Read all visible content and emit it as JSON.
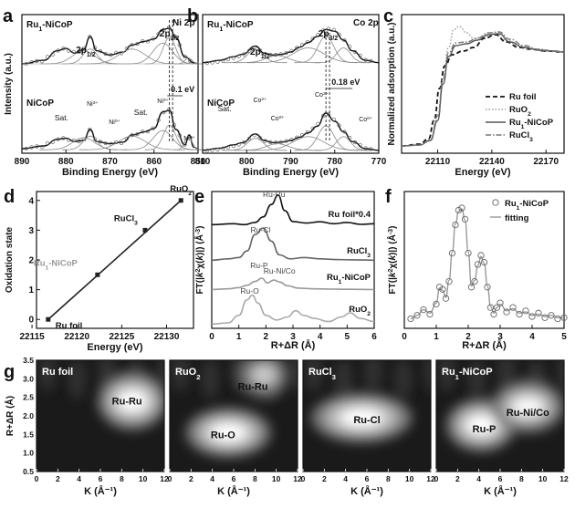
{
  "chart_data": [
    {
      "panel": "a",
      "type": "line",
      "xlabel": "Binding Energy (eV)",
      "ylabel": "Intensity (a.u.)",
      "xlim": [
        890,
        850
      ],
      "xticks": [
        "890",
        "880",
        "870",
        "860",
        "850"
      ],
      "tag": "Ni 2p",
      "series": [
        {
          "name": "Ru1-NiCoP",
          "name_parts": [
            "Ru",
            "1",
            "-NiCoP"
          ],
          "x": [
            890,
            885,
            882,
            880,
            878,
            876,
            874.5,
            873,
            870,
            867,
            865,
            862,
            860,
            858,
            856.5,
            855,
            853,
            851,
            850
          ],
          "y": [
            0.4,
            0.46,
            0.62,
            0.66,
            0.58,
            0.64,
            0.86,
            0.62,
            0.55,
            0.6,
            0.72,
            0.78,
            0.82,
            0.98,
            1.0,
            0.84,
            0.52,
            0.42,
            0.4
          ]
        },
        {
          "name": "NiCoP",
          "x": [
            890,
            885,
            882,
            880,
            878,
            876,
            874.5,
            873,
            870,
            867,
            865,
            862,
            860,
            858,
            856.5,
            855,
            853,
            852,
            851,
            850
          ],
          "y": [
            0.05,
            0.1,
            0.22,
            0.24,
            0.18,
            0.2,
            0.4,
            0.18,
            0.14,
            0.17,
            0.3,
            0.36,
            0.42,
            0.72,
            0.75,
            0.4,
            0.12,
            0.3,
            0.08,
            0.04
          ]
        }
      ],
      "labels": {
        "top_peak_1": [
          "2p",
          "1/2"
        ],
        "top_peak_2": [
          "2p",
          "3/2"
        ],
        "shift": "0.1 eV",
        "sat_1": "Sat.",
        "sat_2": "Sat.",
        "ni_labels": [
          [
            "Ni",
            "3+"
          ],
          [
            "Ni",
            "0+"
          ],
          [
            "Ni",
            "3+"
          ],
          [
            "Ni",
            "0+"
          ]
        ]
      }
    },
    {
      "panel": "b",
      "type": "line",
      "xlabel": "Binding Energy (eV)",
      "ylabel": "",
      "xlim": [
        810,
        770
      ],
      "xticks": [
        "810",
        "800",
        "790",
        "780",
        "770"
      ],
      "tag": "Co 2p",
      "series": [
        {
          "name": "Ru1-NiCoP",
          "name_parts": [
            "Ru",
            "1",
            "-NiCoP"
          ],
          "x": [
            810,
            806,
            803,
            801,
            798,
            796,
            794,
            792,
            790,
            788,
            786,
            784,
            782,
            780,
            778,
            776,
            773,
            770
          ],
          "y": [
            0.42,
            0.46,
            0.52,
            0.56,
            0.7,
            0.58,
            0.55,
            0.56,
            0.6,
            0.68,
            0.76,
            0.86,
            0.98,
            0.95,
            0.8,
            0.62,
            0.46,
            0.42
          ]
        },
        {
          "name": "NiCoP",
          "x": [
            810,
            806,
            803,
            801,
            798,
            796,
            794,
            792,
            790,
            788,
            786,
            784,
            782,
            780,
            778,
            776,
            773,
            770
          ],
          "y": [
            0.02,
            0.06,
            0.12,
            0.16,
            0.32,
            0.2,
            0.16,
            0.17,
            0.2,
            0.26,
            0.34,
            0.46,
            0.7,
            0.55,
            0.36,
            0.18,
            0.05,
            0.02
          ]
        }
      ],
      "labels": {
        "top_peak_1": [
          "2p",
          "1/2"
        ],
        "top_peak_2": [
          "2p",
          "3/2"
        ],
        "shift": "0.18 eV",
        "sat": "Sat.",
        "co_labels": [
          [
            "Co",
            "2+"
          ],
          [
            "Co",
            "0+"
          ],
          [
            "Co",
            "2+"
          ],
          [
            "Co",
            "0+"
          ]
        ]
      }
    },
    {
      "panel": "c",
      "type": "line",
      "xlabel": "Energy (eV)",
      "ylabel": "Normalized adsorption (a.u.)",
      "xlim": [
        22090,
        22180
      ],
      "xticks": [
        22110,
        22140,
        22170
      ],
      "ylim": [
        0,
        1.4
      ],
      "legend": "bottom-right",
      "series": [
        {
          "name": "Ru foil",
          "style": "dash",
          "x": [
            22090,
            22100,
            22105,
            22108,
            22111,
            22114,
            22118,
            22124,
            22130,
            22136,
            22142,
            22148,
            22155,
            22162,
            22170,
            22180
          ],
          "y": [
            0.02,
            0.04,
            0.1,
            0.3,
            0.65,
            0.9,
            1.02,
            1.06,
            1.1,
            1.2,
            1.24,
            1.16,
            1.1,
            1.08,
            1.06,
            1.05
          ]
        },
        {
          "name": "RuO2",
          "name_parts": [
            "RuO",
            "2"
          ],
          "style": "dot",
          "x": [
            22090,
            22100,
            22106,
            22110,
            22113,
            22116,
            22119,
            22122,
            22126,
            22130,
            22136,
            22142,
            22148,
            22155,
            22162,
            22170,
            22180
          ],
          "y": [
            0.02,
            0.03,
            0.08,
            0.3,
            0.75,
            1.1,
            1.3,
            1.33,
            1.26,
            1.2,
            1.22,
            1.25,
            1.18,
            1.12,
            1.08,
            1.06,
            1.05
          ]
        },
        {
          "name": "Ru1-NiCoP",
          "name_parts": [
            "Ru",
            "1",
            "-NiCoP"
          ],
          "style": "solid",
          "x": [
            22090,
            22100,
            22106,
            22110,
            22113,
            22116,
            22120,
            22126,
            22132,
            22138,
            22144,
            22150,
            22158,
            22166,
            22175,
            22180
          ],
          "y": [
            0.02,
            0.03,
            0.08,
            0.3,
            0.7,
            1.0,
            1.12,
            1.14,
            1.18,
            1.24,
            1.25,
            1.16,
            1.1,
            1.07,
            1.06,
            1.05
          ]
        },
        {
          "name": "RuCl3",
          "name_parts": [
            "RuCl",
            "3"
          ],
          "style": "dashdot",
          "x": [
            22090,
            22100,
            22106,
            22110,
            22113,
            22116,
            22120,
            22126,
            22132,
            22138,
            22144,
            22150,
            22158,
            22166,
            22175,
            22180
          ],
          "y": [
            0.02,
            0.03,
            0.09,
            0.35,
            0.76,
            1.04,
            1.15,
            1.16,
            1.2,
            1.26,
            1.27,
            1.19,
            1.12,
            1.08,
            1.06,
            1.05
          ]
        }
      ]
    },
    {
      "panel": "d",
      "type": "scatter",
      "xlabel": "Energy (eV)",
      "ylabel": "Oxidation state",
      "xlim": [
        22115.5,
        22133
      ],
      "ylim": [
        -0.3,
        4.3
      ],
      "xticks": [
        22115,
        22120,
        22125,
        22130
      ],
      "yticks": [
        0,
        1,
        2,
        3,
        4
      ],
      "fit_line": {
        "x": [
          22116.8,
          22131.6
        ],
        "y": [
          0,
          4
        ]
      },
      "points": [
        {
          "name": "Ru foil",
          "x": 22116.8,
          "y": 0
        },
        {
          "name": "Ru1-NiCoP",
          "name_parts": [
            "Ru",
            "1",
            "-NiCoP"
          ],
          "x": 22122.3,
          "y": 1.5,
          "label_color": "#999999"
        },
        {
          "name": "RuCl3",
          "name_parts": [
            "RuCl",
            "3"
          ],
          "x": 22127.6,
          "y": 3
        },
        {
          "name": "RuO2",
          "name_parts": [
            "RuO",
            "2"
          ],
          "x": 22131.6,
          "y": 4
        }
      ]
    },
    {
      "panel": "e",
      "type": "line",
      "xlabel": "R+ΔR (Å)",
      "ylabel": "FT(k²χ(k)) (Å⁻³)",
      "ylabel_parts": [
        "FT(|",
        [
          "k",
          "2"
        ],
        "χ(",
        [
          "k"
        ],
        ")|) (Å",
        "-3",
        ")"
      ],
      "xlim": [
        0,
        6
      ],
      "xticks": [
        0,
        1,
        2,
        3,
        4,
        5,
        6
      ],
      "series": [
        {
          "name": "Ru foil*0.4",
          "color": "#111111",
          "offset": 3,
          "x": [
            0,
            0.8,
            1.2,
            1.6,
            1.9,
            2.2,
            2.45,
            2.7,
            3.0,
            3.5,
            4.0,
            4.5,
            5.0,
            5.5,
            6
          ],
          "y": [
            0.05,
            0.08,
            0.05,
            0.12,
            0.3,
            0.7,
            1.0,
            0.5,
            0.15,
            0.1,
            0.14,
            0.08,
            0.12,
            0.06,
            0.08
          ]
        },
        {
          "name": "RuCl3",
          "name_parts": [
            "RuCl",
            "3"
          ],
          "color": "#666666",
          "offset": 2,
          "x": [
            0,
            0.6,
            1.0,
            1.3,
            1.6,
            1.9,
            2.2,
            2.5,
            2.9,
            3.4,
            4.0,
            4.6,
            5.2,
            6
          ],
          "y": [
            0.02,
            0.06,
            0.1,
            0.3,
            0.8,
            1.0,
            0.6,
            0.18,
            0.06,
            0.1,
            0.06,
            0.04,
            0.03,
            0.02
          ]
        },
        {
          "name": "Ru1-NiCoP",
          "name_parts": [
            "Ru",
            "1",
            "-NiCoP"
          ],
          "color": "#999999",
          "offset": 1,
          "x": [
            0,
            0.6,
            1.0,
            1.3,
            1.6,
            1.85,
            2.05,
            2.3,
            2.5,
            2.8,
            3.2,
            3.8,
            4.4,
            5.0,
            6
          ],
          "y": [
            0.02,
            0.05,
            0.1,
            0.2,
            0.36,
            0.5,
            0.3,
            0.42,
            0.34,
            0.18,
            0.08,
            0.05,
            0.04,
            0.03,
            0.02
          ]
        },
        {
          "name": "RuO2",
          "name_parts": [
            "RuO",
            "2"
          ],
          "color": "#aaaaaa",
          "offset": 0,
          "x": [
            0,
            0.6,
            1.0,
            1.3,
            1.5,
            1.7,
            2.0,
            2.4,
            2.8,
            3.1,
            3.4,
            3.8,
            4.3,
            4.8,
            5.1,
            5.5,
            6
          ],
          "y": [
            0.02,
            0.06,
            0.3,
            0.8,
            0.95,
            0.7,
            0.3,
            0.15,
            0.25,
            0.45,
            0.3,
            0.2,
            0.1,
            0.25,
            0.38,
            0.2,
            0.1
          ]
        }
      ],
      "peak_labels": [
        "Ru-Ru",
        "Ru-Cl",
        "Ru-P",
        "Ru-Ni/Co",
        "Ru-O"
      ]
    },
    {
      "panel": "f",
      "type": "line",
      "xlabel": "R+ΔR (Å)",
      "ylabel": "FT(k²χ(k)) (Å⁻³)",
      "ylabel_parts": [
        "FT(|",
        [
          "k",
          "2"
        ],
        "χ(",
        [
          "k"
        ],
        ")|) (Å",
        "-3",
        ")"
      ],
      "xlim": [
        0,
        5
      ],
      "xticks": [
        0,
        1,
        2,
        3,
        4,
        5
      ],
      "legend": "top-right",
      "series": [
        {
          "name": "Ru1-NiCoP",
          "name_parts": [
            "Ru",
            "1",
            "-NiCoP"
          ],
          "marker": "circle",
          "x": [
            0.2,
            0.4,
            0.6,
            0.8,
            1.0,
            1.1,
            1.2,
            1.3,
            1.4,
            1.5,
            1.6,
            1.7,
            1.8,
            1.9,
            2.0,
            2.1,
            2.2,
            2.3,
            2.4,
            2.5,
            2.6,
            2.7,
            2.8,
            2.9,
            3.0,
            3.2,
            3.4,
            3.6,
            3.8,
            4.0,
            4.2,
            4.4,
            4.6,
            4.8,
            5.0
          ],
          "y": [
            0.02,
            0.05,
            0.1,
            0.06,
            0.15,
            0.3,
            0.28,
            0.2,
            0.35,
            0.6,
            0.85,
            0.98,
            1.0,
            0.9,
            0.6,
            0.3,
            0.35,
            0.5,
            0.58,
            0.52,
            0.3,
            0.12,
            0.06,
            0.12,
            0.16,
            0.08,
            0.12,
            0.06,
            0.09,
            0.04,
            0.07,
            0.03,
            0.05,
            0.02,
            0.03
          ]
        },
        {
          "name": "fitting",
          "style": "solid",
          "x": [
            0.2,
            0.4,
            0.6,
            0.8,
            1.0,
            1.1,
            1.2,
            1.3,
            1.4,
            1.5,
            1.6,
            1.7,
            1.8,
            1.9,
            2.0,
            2.1,
            2.2,
            2.3,
            2.4,
            2.5,
            2.6,
            2.7,
            2.8,
            2.9,
            3.0,
            3.2,
            3.4,
            3.6,
            3.8,
            4.0,
            4.2,
            4.4,
            4.6,
            4.8,
            5.0
          ],
          "y": [
            0.02,
            0.05,
            0.1,
            0.07,
            0.16,
            0.29,
            0.27,
            0.21,
            0.36,
            0.61,
            0.86,
            0.97,
            0.99,
            0.89,
            0.61,
            0.31,
            0.36,
            0.49,
            0.57,
            0.51,
            0.31,
            0.13,
            0.07,
            0.12,
            0.15,
            0.09,
            0.11,
            0.07,
            0.08,
            0.05,
            0.06,
            0.04,
            0.05,
            0.03,
            0.03
          ]
        }
      ]
    },
    {
      "panel": "g",
      "type": "heatmap",
      "xlabel": "K (Å⁻¹)",
      "ylabel": "R+ΔR (Å)",
      "xlim": [
        0,
        12
      ],
      "ylim": [
        0.5,
        3.5
      ],
      "xticks": [
        0,
        2,
        4,
        6,
        8,
        10,
        12
      ],
      "yticks": [
        "0.5",
        "1.0",
        "1.5",
        "2.0",
        "2.5",
        "3.0",
        "3.5"
      ],
      "maps": [
        {
          "title": "Ru foil",
          "labels": [
            {
              "text": "Ru-Ru",
              "k": 8.5,
              "r": 2.4
            }
          ],
          "blobs": [
            {
              "k": 9.0,
              "r": 2.4,
              "sk": 1.8,
              "sr": 0.35,
              "a": 1.0
            }
          ]
        },
        {
          "title": "RuO2",
          "title_parts": [
            "RuO",
            "2"
          ],
          "labels": [
            {
              "text": "Ru-Ru",
              "k": 7.8,
              "r": 2.8
            },
            {
              "text": "Ru-O",
              "k": 5.0,
              "r": 1.5
            }
          ],
          "blobs": [
            {
              "k": 5.5,
              "r": 1.55,
              "sk": 2.2,
              "sr": 0.3,
              "a": 1.0
            },
            {
              "k": 8.8,
              "r": 3.1,
              "sk": 1.4,
              "sr": 0.3,
              "a": 0.55
            }
          ]
        },
        {
          "title": "RuCl3",
          "title_parts": [
            "RuCl",
            "3"
          ],
          "labels": [
            {
              "text": "Ru-Cl",
              "k": 6.0,
              "r": 1.9
            }
          ],
          "blobs": [
            {
              "k": 5.5,
              "r": 1.95,
              "sk": 2.6,
              "sr": 0.3,
              "a": 1.0
            }
          ]
        },
        {
          "title": "Ru1-NiCoP",
          "title_parts": [
            "Ru",
            "1",
            "-NiCoP"
          ],
          "labels": [
            {
              "text": "Ru-P",
              "k": 4.5,
              "r": 1.65
            },
            {
              "text": "Ru-Ni/Co",
              "k": 8.6,
              "r": 2.1
            }
          ],
          "blobs": [
            {
              "k": 4.2,
              "r": 1.75,
              "sk": 1.8,
              "sr": 0.32,
              "a": 1.0
            },
            {
              "k": 8.6,
              "r": 2.25,
              "sk": 1.9,
              "sr": 0.32,
              "a": 0.9
            }
          ]
        }
      ]
    }
  ]
}
